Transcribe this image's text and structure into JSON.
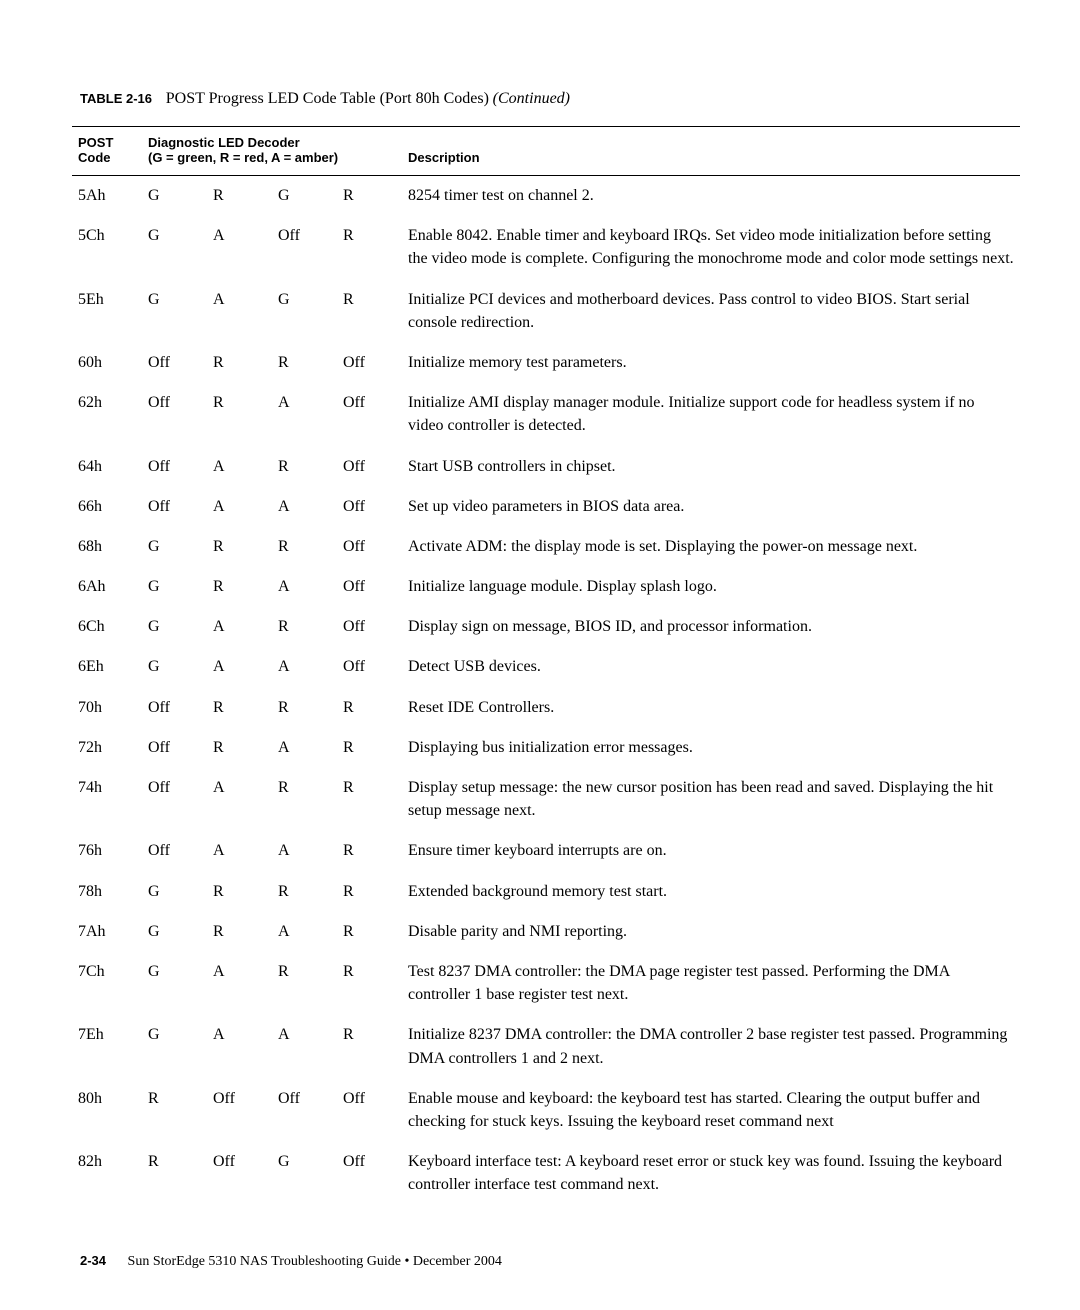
{
  "caption": {
    "label": "TABLE 2-16",
    "title": "POST Progress LED Code Table (Port 80h Codes)",
    "continued": "(Continued)"
  },
  "headers": {
    "post_code_l1": "POST",
    "post_code_l2": "Code",
    "decoder_l1": "Diagnostic LED Decoder",
    "decoder_l2": "(G = green, R = red, A = amber)",
    "description": "Description"
  },
  "rows": [
    {
      "code": "5Ah",
      "led": [
        "G",
        "R",
        "G",
        "R"
      ],
      "desc": "8254 timer test on channel 2."
    },
    {
      "code": "5Ch",
      "led": [
        "G",
        "A",
        "Off",
        "R"
      ],
      "desc": "Enable 8042. Enable timer and keyboard IRQs. Set video mode initialization before setting the video mode is complete. Configuring the monochrome mode and color mode settings next."
    },
    {
      "code": "5Eh",
      "led": [
        "G",
        "A",
        "G",
        "R"
      ],
      "desc": "Initialize PCI devices and motherboard devices. Pass control to video BIOS. Start serial console redirection."
    },
    {
      "code": "60h",
      "led": [
        "Off",
        "R",
        "R",
        "Off"
      ],
      "desc": "Initialize memory test parameters."
    },
    {
      "code": "62h",
      "led": [
        "Off",
        "R",
        "A",
        "Off"
      ],
      "desc": "Initialize AMI display manager module. Initialize support code for headless system if no video controller is detected."
    },
    {
      "code": "64h",
      "led": [
        "Off",
        "A",
        "R",
        "Off"
      ],
      "desc": "Start USB controllers in chipset."
    },
    {
      "code": "66h",
      "led": [
        "Off",
        "A",
        "A",
        "Off"
      ],
      "desc": "Set up video parameters in BIOS data area."
    },
    {
      "code": "68h",
      "led": [
        "G",
        "R",
        "R",
        "Off"
      ],
      "desc": "Activate ADM: the display mode is set. Displaying the power-on message next."
    },
    {
      "code": "6Ah",
      "led": [
        "G",
        "R",
        "A",
        "Off"
      ],
      "desc": "Initialize language module. Display splash logo."
    },
    {
      "code": "6Ch",
      "led": [
        "G",
        "A",
        "R",
        "Off"
      ],
      "desc": "Display sign on message, BIOS ID, and processor information."
    },
    {
      "code": "6Eh",
      "led": [
        "G",
        "A",
        "A",
        "Off"
      ],
      "desc": "Detect USB devices."
    },
    {
      "code": "70h",
      "led": [
        "Off",
        "R",
        "R",
        "R"
      ],
      "desc": "Reset IDE Controllers."
    },
    {
      "code": "72h",
      "led": [
        "Off",
        "R",
        "A",
        "R"
      ],
      "desc": "Displaying bus initialization error messages."
    },
    {
      "code": "74h",
      "led": [
        "Off",
        "A",
        "R",
        "R"
      ],
      "desc": "Display setup message: the new cursor position has been read and saved. Displaying the hit setup message next."
    },
    {
      "code": "76h",
      "led": [
        "Off",
        "A",
        "A",
        "R"
      ],
      "desc": "Ensure timer keyboard interrupts are on."
    },
    {
      "code": "78h",
      "led": [
        "G",
        "R",
        "R",
        "R"
      ],
      "desc": "Extended background memory test start."
    },
    {
      "code": "7Ah",
      "led": [
        "G",
        "R",
        "A",
        "R"
      ],
      "desc": "Disable parity and NMI reporting."
    },
    {
      "code": "7Ch",
      "led": [
        "G",
        "A",
        "R",
        "R"
      ],
      "desc": "Test 8237 DMA controller: the DMA page register test passed. Performing the DMA controller 1 base register test next."
    },
    {
      "code": "7Eh",
      "led": [
        "G",
        "A",
        "A",
        "R"
      ],
      "desc": "Initialize 8237 DMA controller: the DMA controller 2 base register test passed. Programming DMA controllers 1 and 2 next."
    },
    {
      "code": "80h",
      "led": [
        "R",
        "Off",
        "Off",
        "Off"
      ],
      "desc": "Enable mouse and keyboard: the keyboard test has started. Clearing the output buffer and checking for stuck keys. Issuing the keyboard reset command next"
    },
    {
      "code": "82h",
      "led": [
        "R",
        "Off",
        "G",
        "Off"
      ],
      "desc": "Keyboard interface test: A keyboard reset error or stuck key was found. Issuing the keyboard controller interface test command next."
    }
  ],
  "footer": {
    "page": "2-34",
    "text": "Sun StorEdge 5310 NAS Troubleshooting Guide • December 2004"
  }
}
